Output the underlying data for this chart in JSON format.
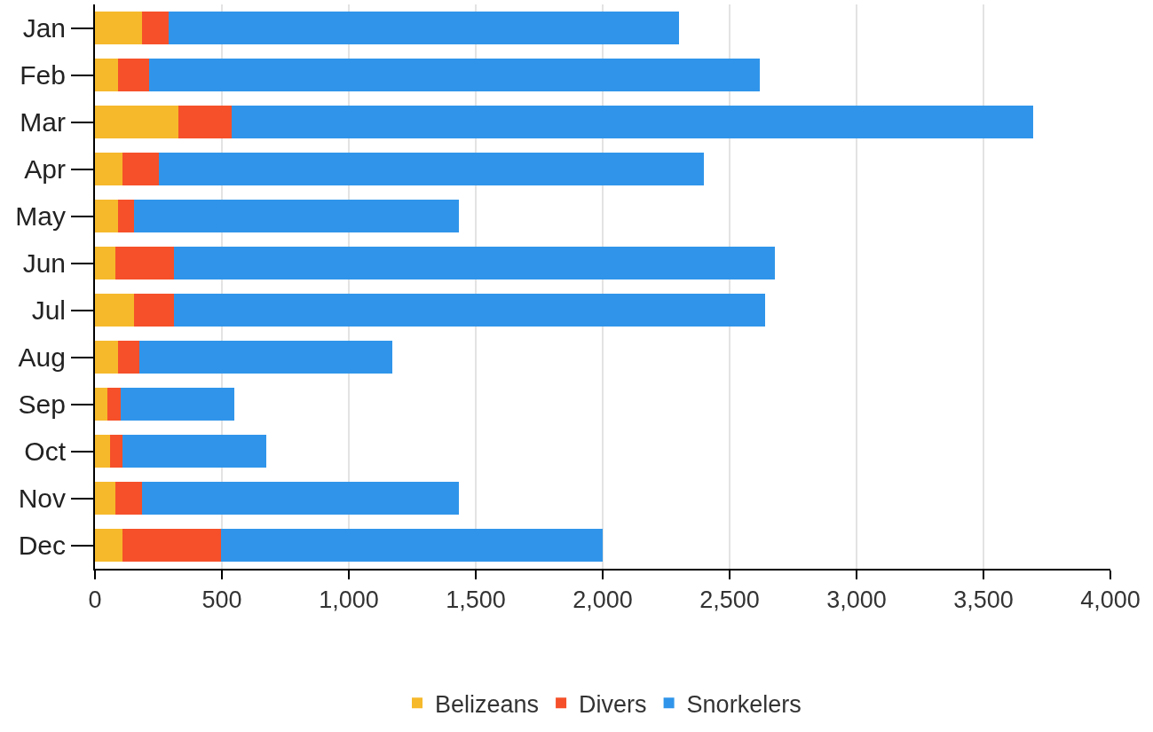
{
  "chart_data": {
    "type": "bar",
    "orientation": "horizontal",
    "stacked": true,
    "categories": [
      "Jan",
      "Feb",
      "Mar",
      "Apr",
      "May",
      "Jun",
      "Jul",
      "Aug",
      "Sep",
      "Oct",
      "Nov",
      "Dec"
    ],
    "series": [
      {
        "name": "Belizeans",
        "color": "#f6b92b",
        "values": [
          185,
          90,
          330,
          110,
          90,
          80,
          155,
          90,
          50,
          60,
          80,
          110
        ]
      },
      {
        "name": "Divers",
        "color": "#f5502a",
        "values": [
          105,
          125,
          210,
          140,
          65,
          230,
          155,
          85,
          50,
          50,
          105,
          385
        ]
      },
      {
        "name": "Snorkelers",
        "color": "#3095ea",
        "values": [
          2010,
          2405,
          3155,
          2150,
          1280,
          2370,
          2330,
          995,
          450,
          565,
          1250,
          1505
        ]
      }
    ],
    "xlim": [
      0,
      4000
    ],
    "xticks": [
      0,
      {
        "value": 500,
        "label": "500"
      },
      {
        "value": 1000,
        "label": "1,000"
      },
      {
        "value": 1500,
        "label": "1,500"
      },
      {
        "value": 2000,
        "label": "2,000"
      },
      {
        "value": 2500,
        "label": "2,500"
      },
      {
        "value": 3000,
        "label": "3,000"
      },
      {
        "value": 3500,
        "label": "3,500"
      },
      {
        "value": 4000,
        "label": "4,000"
      }
    ],
    "grid": "x",
    "legend": "bottom"
  }
}
